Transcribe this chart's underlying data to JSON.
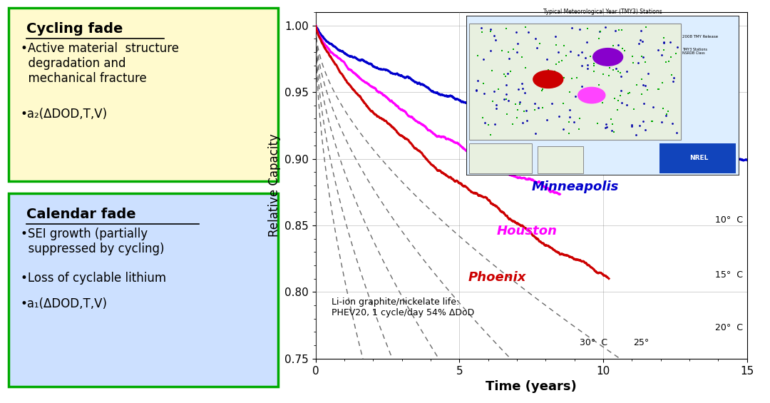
{
  "xlabel": "Time (years)",
  "ylabel": "Relative Capacity",
  "xlim": [
    0,
    15
  ],
  "ylim": [
    0.75,
    1.01
  ],
  "yticks": [
    0.75,
    0.8,
    0.85,
    0.9,
    0.95,
    1.0
  ],
  "xticks": [
    0,
    5,
    10,
    15
  ],
  "minneapolis_color": "#0000cc",
  "houston_color": "#ff00ff",
  "phoenix_color": "#cc0000",
  "box1_bg": "#fffacd",
  "box1_border": "#00aa00",
  "box2_bg": "#cce0ff",
  "box2_border": "#00aa00",
  "cycling_title": "Cycling fade",
  "calendar_title": "Calendar fade",
  "annotation": "Li-ion graphite/nickelate life:\nPHEV20, 1 cycle/day 54% ΔDoD",
  "temp_annots": [
    [
      14.85,
      0.854,
      "10°  C"
    ],
    [
      14.85,
      0.813,
      "15°  C"
    ],
    [
      14.85,
      0.773,
      "20°  C"
    ],
    [
      11.6,
      0.762,
      "25°"
    ],
    [
      10.15,
      0.762,
      "30°  C"
    ]
  ],
  "city_labels": [
    [
      7.5,
      0.876,
      "Minneapolis",
      "#0000cc"
    ],
    [
      6.3,
      0.843,
      "Houston",
      "#ff00ff"
    ],
    [
      5.3,
      0.808,
      "Phoenix",
      "#cc0000"
    ]
  ]
}
